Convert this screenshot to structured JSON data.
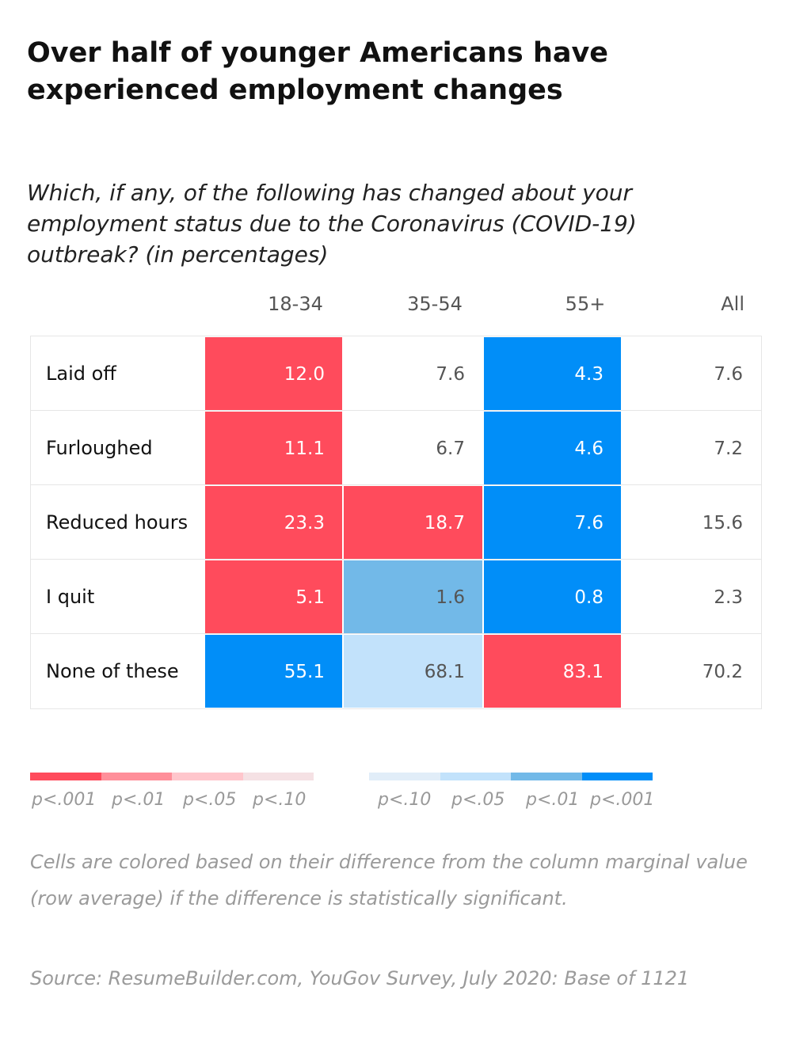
{
  "title": "Over half of younger Americans have experienced employment changes",
  "subtitle": "Which, if any, of the following has changed about your employment status due to the Coronavirus (COVID-19) outbreak? (in percentages)",
  "chart_data": {
    "type": "table",
    "columns": [
      "18-34",
      "35-54",
      "55+",
      "All"
    ],
    "rows": [
      {
        "label": "Laid off",
        "values": [
          12.0,
          7.6,
          4.3,
          7.6
        ],
        "display": [
          "12.0",
          "7.6",
          "4.3",
          "7.6"
        ],
        "significance": [
          "red-001",
          "none",
          "blue-001",
          "none"
        ]
      },
      {
        "label": "Furloughed",
        "values": [
          11.1,
          6.7,
          4.6,
          7.2
        ],
        "display": [
          "11.1",
          "6.7",
          "4.6",
          "7.2"
        ],
        "significance": [
          "red-001",
          "none",
          "blue-001",
          "none"
        ]
      },
      {
        "label": "Reduced hours",
        "values": [
          23.3,
          18.7,
          7.6,
          15.6
        ],
        "display": [
          "23.3",
          "18.7",
          "7.6",
          "15.6"
        ],
        "significance": [
          "red-001",
          "red-001",
          "blue-001",
          "none"
        ]
      },
      {
        "label": "I quit",
        "values": [
          5.1,
          1.6,
          0.8,
          2.3
        ],
        "display": [
          "5.1",
          "1.6",
          "0.8",
          "2.3"
        ],
        "significance": [
          "red-001",
          "blue-01",
          "blue-001",
          "none"
        ]
      },
      {
        "label": "None of these",
        "values": [
          55.1,
          68.1,
          83.1,
          70.2
        ],
        "display": [
          "55.1",
          "68.1",
          "83.1",
          "70.2"
        ],
        "significance": [
          "blue-001",
          "blue-05",
          "red-001",
          "none"
        ]
      }
    ],
    "colors": {
      "red-001": "#ff4b5c",
      "red-01": "#ff8f9a",
      "red-05": "#ffc6cc",
      "red-10": "#f5e1e4",
      "blue-10": "#e1edf8",
      "blue-05": "#c2e2fb",
      "blue-01": "#72b9e8",
      "blue-001": "#018ef8",
      "none": "#ffffff"
    }
  },
  "legend": {
    "red": [
      {
        "label": "p<.001",
        "color": "#ff4b5c"
      },
      {
        "label": "p<.01",
        "color": "#ff8f9a"
      },
      {
        "label": "p<.05",
        "color": "#ffc6cc"
      },
      {
        "label": "p<.10",
        "color": "#f5e1e4"
      }
    ],
    "blue": [
      {
        "label": "p<.10",
        "color": "#e1edf8"
      },
      {
        "label": "p<.05",
        "color": "#c2e2fb"
      },
      {
        "label": "p<.01",
        "color": "#72b9e8"
      },
      {
        "label": "p<.001",
        "color": "#018ef8"
      }
    ]
  },
  "note": "Cells are colored based on their difference from the column marginal value (row average) if the difference is statistically significant.",
  "source": "Source: ResumeBuilder.com, YouGov Survey, July 2020: Base of 1121"
}
